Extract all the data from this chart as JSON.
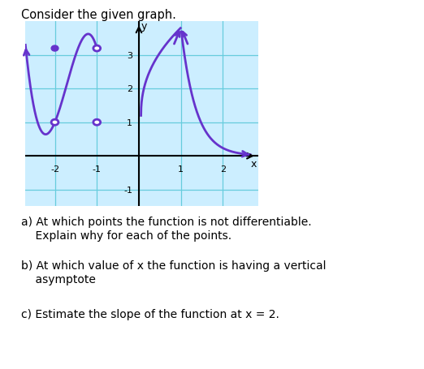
{
  "title": "Consider the given graph.",
  "title_fontsize": 10.5,
  "bg_color": "#ffffff",
  "graph_bg_color": "#cceeff",
  "grid_color": "#66ccdd",
  "curve_color": "#6633cc",
  "axis_color": "#000000",
  "xlim": [
    -2.7,
    2.85
  ],
  "ylim": [
    -1.5,
    4.0
  ],
  "xtick_vals": [
    -2,
    -1,
    1,
    2
  ],
  "xtick_labels": [
    "-2",
    "-1",
    "1",
    "2"
  ],
  "ytick_vals": [
    -1,
    1,
    2,
    3
  ],
  "ytick_labels": [
    "-1",
    "1",
    "2",
    "3"
  ],
  "open_circles": [
    [
      -2.0,
      1.0
    ],
    [
      -1.0,
      3.2
    ],
    [
      -1.0,
      1.0
    ]
  ],
  "filled_circles": [
    [
      -2.0,
      3.2
    ]
  ],
  "q1a": "a) At which points the function is not differentiable.",
  "q1b": "    Explain why for each of the points.",
  "q2a": "b) At which value of x the function is having a vertical",
  "q2b": "    asymptote",
  "q3": "c) Estimate the slope of the function at x = 2."
}
